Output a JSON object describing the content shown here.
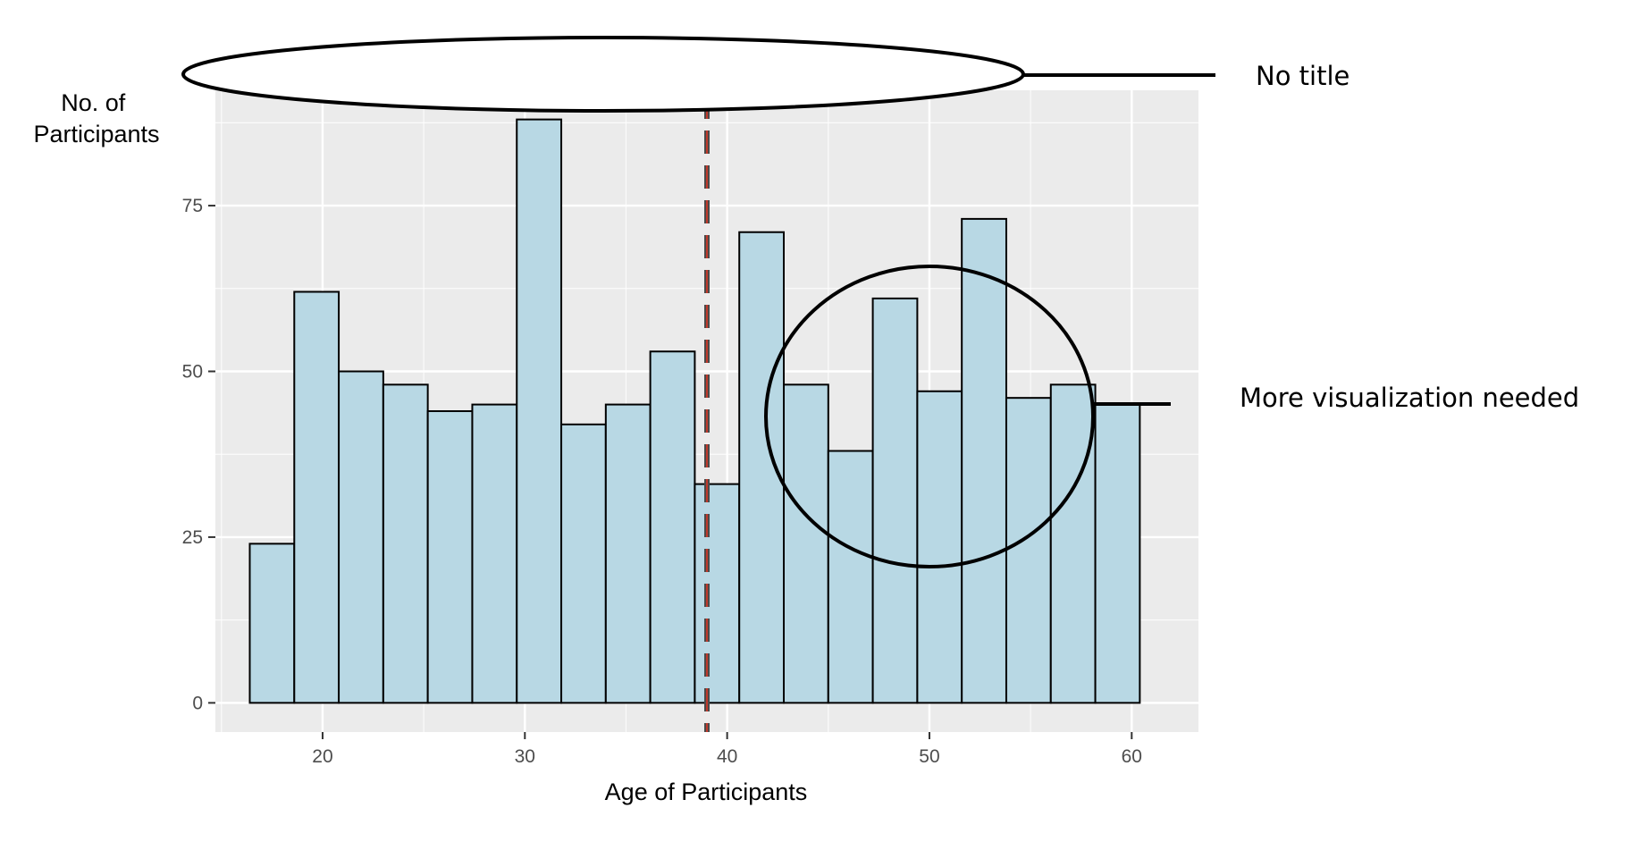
{
  "chart_data": {
    "type": "bar",
    "subtype": "histogram",
    "x": [
      17.5,
      20,
      22.2,
      24.4,
      26.6,
      28.8,
      31,
      33.2,
      35.4,
      37.6,
      39.8,
      42,
      44.2,
      46.4,
      48.6,
      50.8,
      53,
      55.2,
      57.4,
      59.6
    ],
    "bin_edges": [
      16.4,
      18.6,
      20.8,
      23.0,
      25.2,
      27.4,
      29.6,
      31.8,
      34.0,
      36.2,
      38.4,
      40.6,
      42.8,
      45.0,
      47.2,
      49.4,
      51.6,
      53.8,
      56.0,
      58.2,
      60.4
    ],
    "values": [
      24,
      62,
      50,
      48,
      44,
      45,
      88,
      42,
      45,
      53,
      33,
      71,
      48,
      38,
      61,
      47,
      73,
      46,
      48,
      45
    ],
    "mean_line": 39,
    "xlabel": "Age of Participants",
    "ylabel": [
      "No. of",
      "Participants"
    ],
    "xlim": [
      14.7,
      63.3
    ],
    "ylim": [
      -4.4,
      92.4
    ],
    "x_ticks": [
      20,
      30,
      40,
      50,
      60
    ],
    "y_ticks": [
      0,
      25,
      50,
      75
    ],
    "grid": true,
    "colors": {
      "panel": "#ebebeb",
      "grid_major": "#ffffff",
      "bar_fill": "#b8d8e4",
      "bar_edge": "#000000",
      "mean_line_outer": "#4a4a4a",
      "mean_line_inner": "#c0392b"
    }
  },
  "annotations": {
    "no_title": "No title",
    "more_viz": "More visualization needed"
  }
}
